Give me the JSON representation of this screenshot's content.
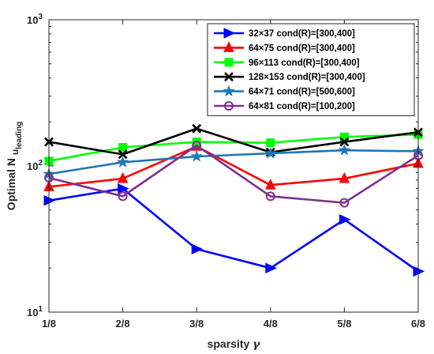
{
  "chart_data": {
    "type": "line",
    "xlabel": "sparsity",
    "xlabel_symbol": "γ",
    "ylabel_main": "Optimal N",
    "ylabel_sub": "u",
    "ylabel_subsub": "leading",
    "y_scale": "log",
    "ylim": [
      10,
      1000
    ],
    "y_ticks": [
      10,
      100,
      1000
    ],
    "y_tick_labels": [
      {
        "base": "10",
        "exp": "1"
      },
      {
        "base": "10",
        "exp": "2"
      },
      {
        "base": "10",
        "exp": "3"
      }
    ],
    "categories": [
      "1/8",
      "2/8",
      "3/8",
      "4/8",
      "5/8",
      "6/8"
    ],
    "grid": false,
    "legend_position": "top-right",
    "series": [
      {
        "name": "32×37 cond(R)=[300,400]",
        "color": "#0000ff",
        "marker": "triangle-right",
        "values": [
          58,
          70,
          27,
          20,
          43,
          19
        ]
      },
      {
        "name": "64×75 cond(R)=[300,400]",
        "color": "#ff0000",
        "marker": "triangle-up",
        "values": [
          72,
          82,
          136,
          74,
          82,
          104
        ]
      },
      {
        "name": "96×113 cond(R)=[300,400]",
        "color": "#00ff00",
        "marker": "square",
        "values": [
          108,
          134,
          146,
          144,
          158,
          164
        ]
      },
      {
        "name": "128×153 cond(R)=[300,400]",
        "color": "#000000",
        "marker": "x",
        "values": [
          146,
          120,
          180,
          124,
          146,
          170
        ]
      },
      {
        "name": "64×71 cond(R)=[500,600]",
        "color": "#1f77b4",
        "marker": "star",
        "values": [
          88,
          106,
          116,
          122,
          128,
          126
        ]
      },
      {
        "name": "64×81 cond(R)=[100,200]",
        "color": "#7e2f8e",
        "marker": "circle",
        "values": [
          83,
          62,
          138,
          62,
          56,
          118
        ]
      }
    ]
  }
}
